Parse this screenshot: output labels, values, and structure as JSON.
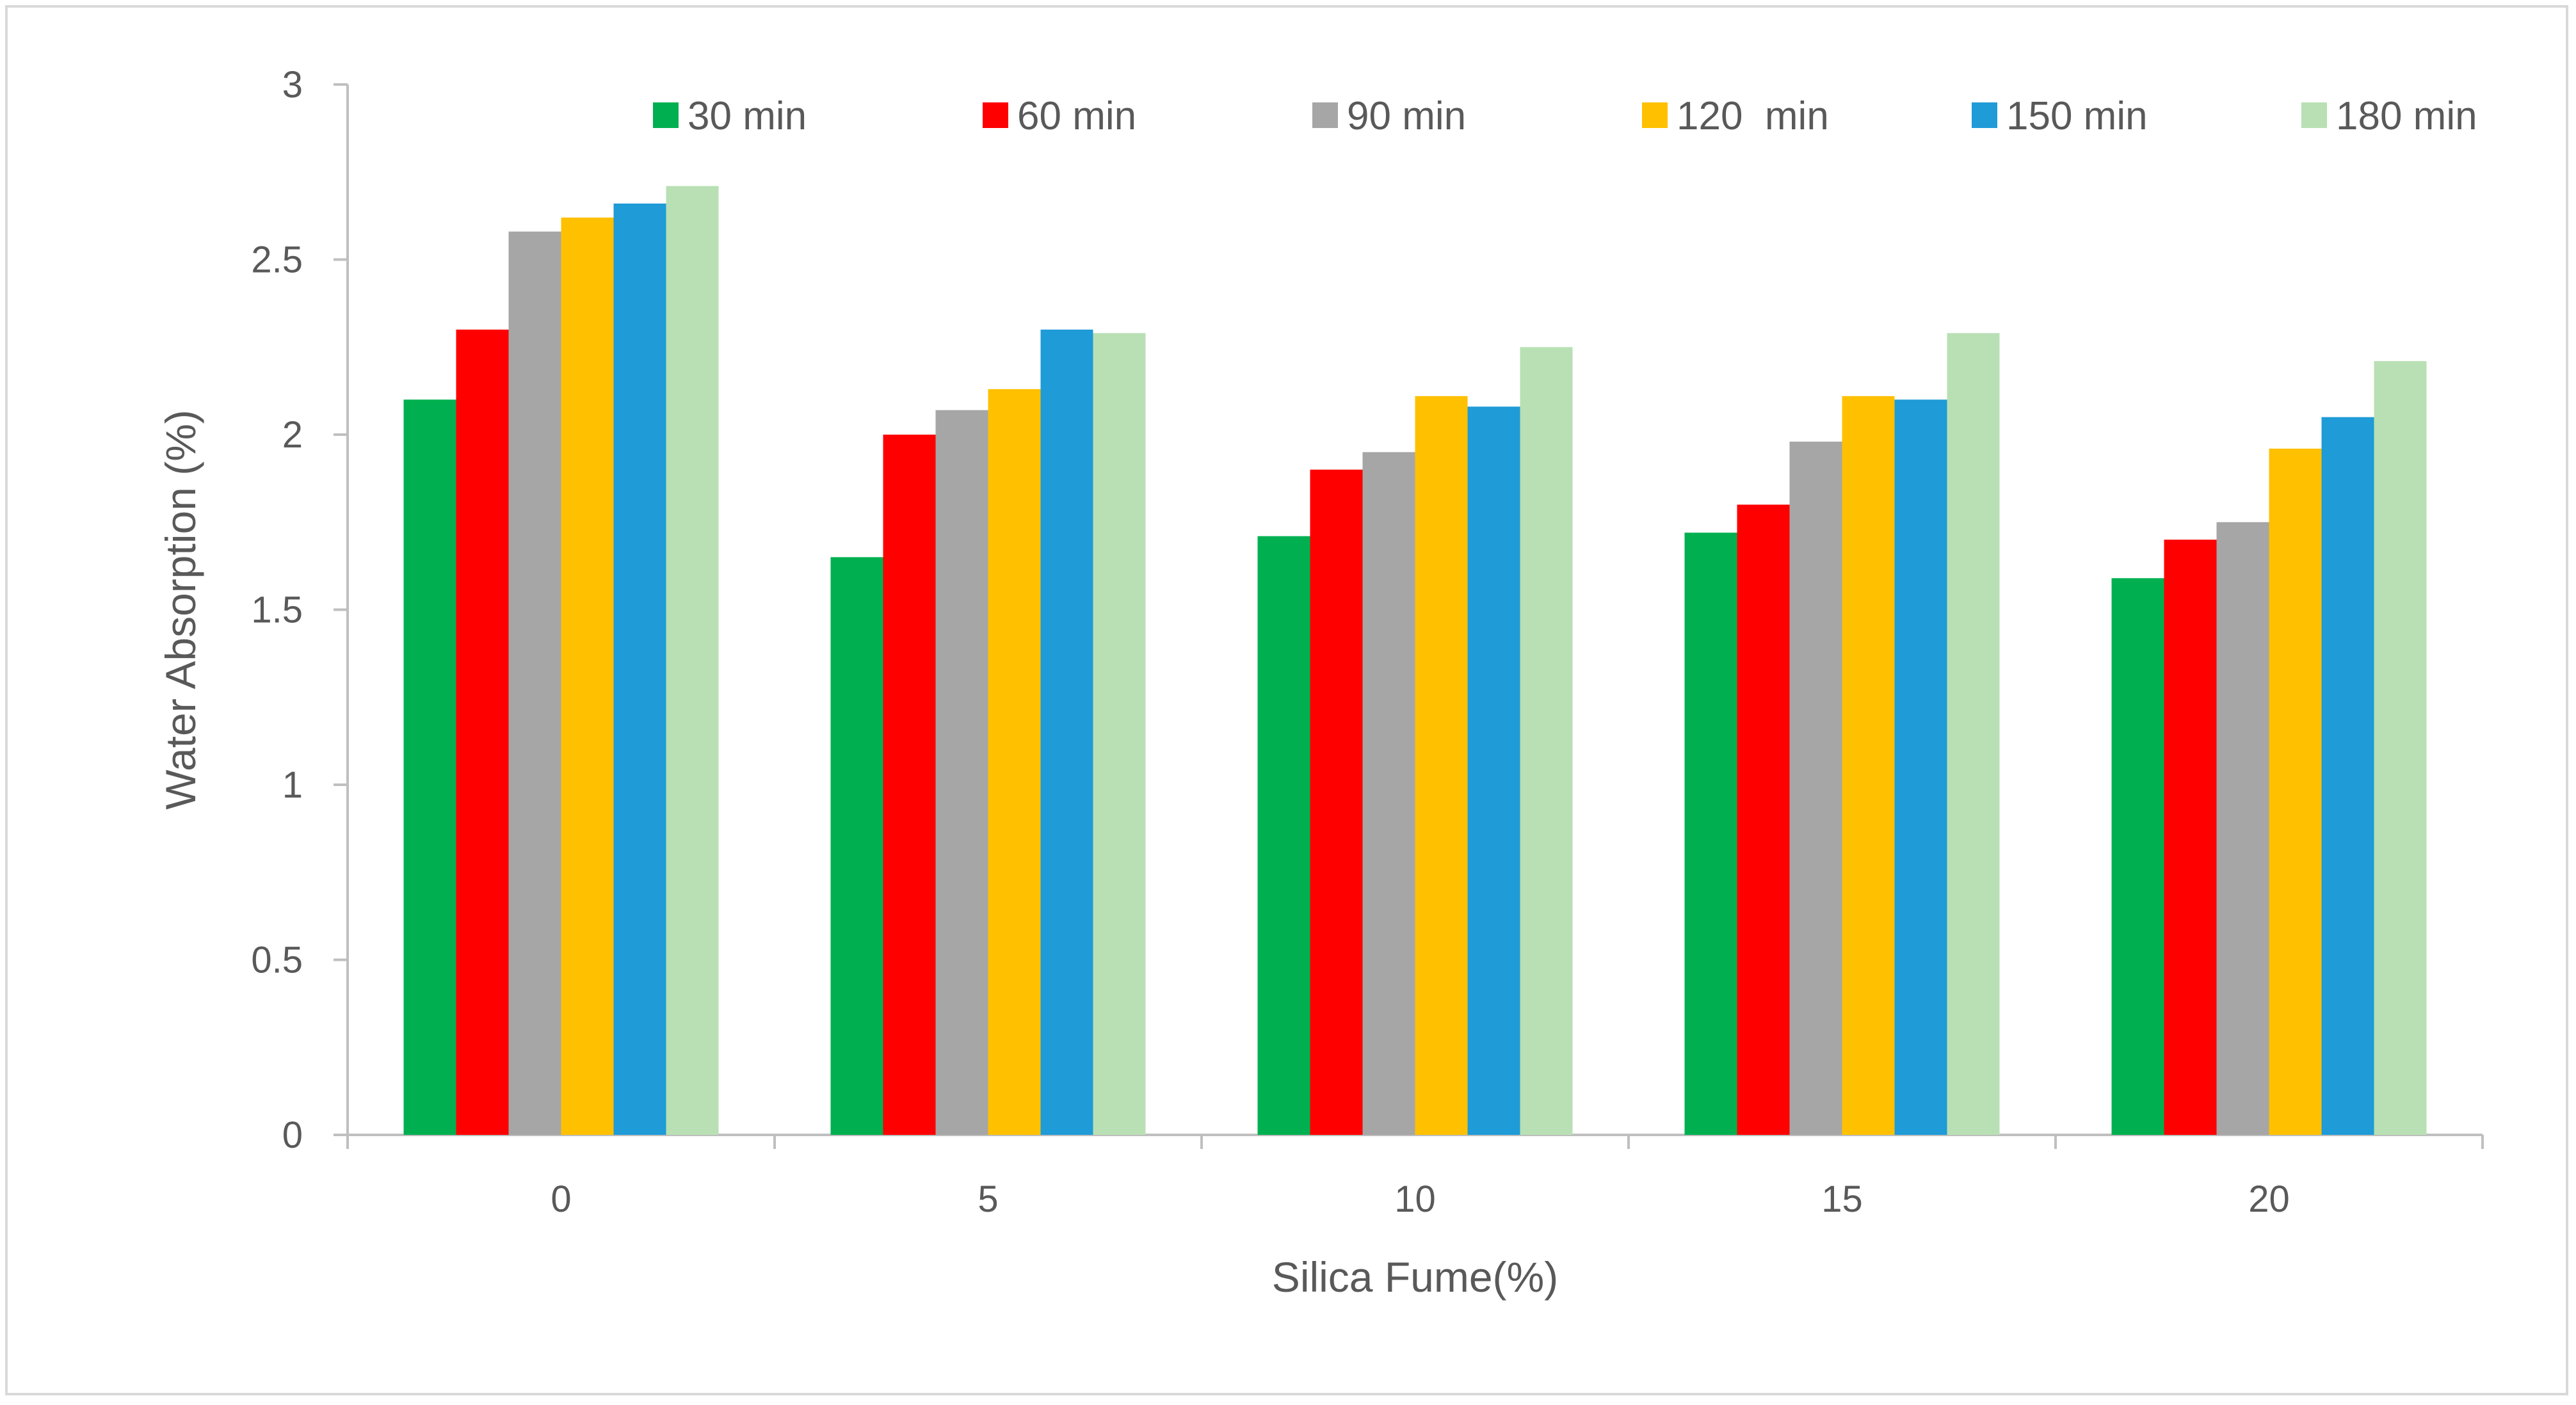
{
  "chart_data": {
    "type": "bar",
    "title": "",
    "xlabel": "Silica Fume(%)",
    "ylabel": "Water Absorption (%)",
    "categories": [
      "0",
      "5",
      "10",
      "15",
      "20"
    ],
    "ylim": [
      0,
      3
    ],
    "yticks": [
      0,
      0.5,
      1,
      1.5,
      2,
      2.5,
      3
    ],
    "ytick_labels": [
      "0",
      "0.5",
      "1",
      "1.5",
      "2",
      "2.5",
      "3"
    ],
    "grid": false,
    "legend_position": "top",
    "series": [
      {
        "name": "30 min",
        "color": "#00b050",
        "values": [
          2.1,
          1.65,
          1.71,
          1.72,
          1.59
        ]
      },
      {
        "name": "60 min",
        "color": "#ff0000",
        "values": [
          2.3,
          2.0,
          1.9,
          1.8,
          1.7
        ]
      },
      {
        "name": "90 min",
        "color": "#a6a6a6",
        "values": [
          2.58,
          2.07,
          1.95,
          1.98,
          1.75
        ]
      },
      {
        "name": "120  min",
        "color": "#ffc000",
        "values": [
          2.62,
          2.13,
          2.11,
          2.11,
          1.96
        ]
      },
      {
        "name": "150 min",
        "color": "#1f9bd7",
        "values": [
          2.66,
          2.3,
          2.08,
          2.1,
          2.05
        ]
      },
      {
        "name": "180 min",
        "color": "#b8e0b4",
        "values": [
          2.71,
          2.29,
          2.25,
          2.29,
          2.21
        ]
      }
    ]
  }
}
